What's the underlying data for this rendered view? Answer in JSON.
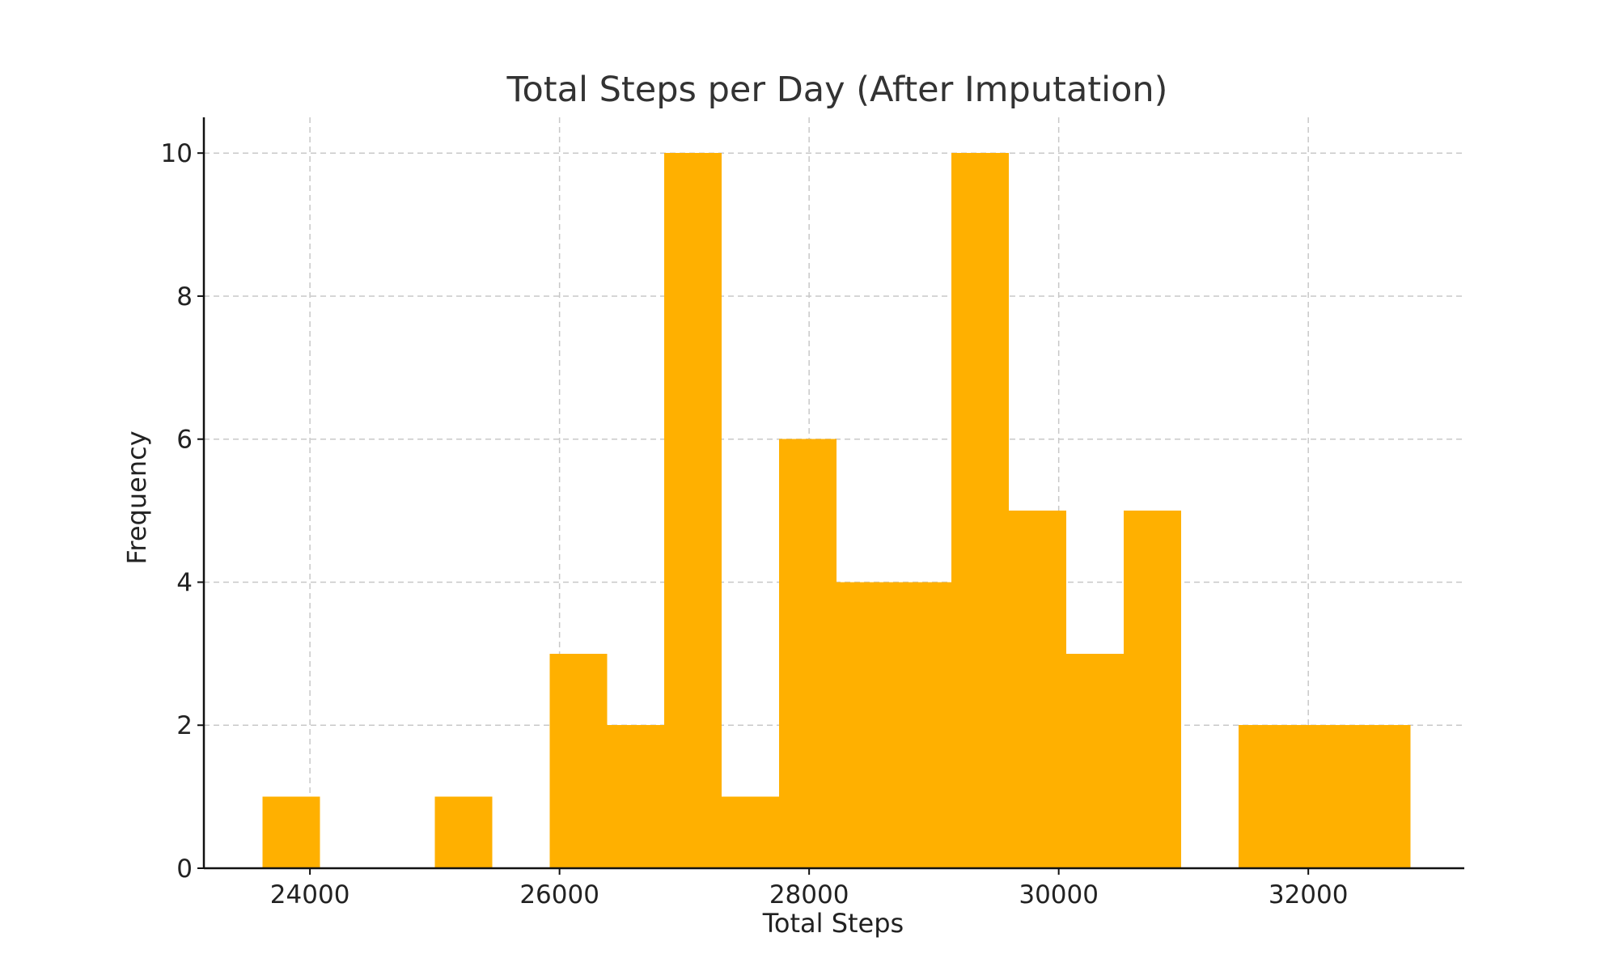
{
  "chart_data": {
    "type": "bar",
    "title": "Total Steps per Day (After Imputation)",
    "xlabel": "Total Steps",
    "ylabel": "Frequency",
    "grid": true,
    "bar_color": "#FFB000",
    "xlim": [
      23150,
      33250
    ],
    "ylim": [
      0,
      10.5
    ],
    "xticks": [
      "24000",
      "26000",
      "28000",
      "30000",
      "32000"
    ],
    "yticks": [
      "0",
      "2",
      "4",
      "6",
      "8",
      "10"
    ],
    "bins": [
      {
        "start": 23620,
        "end": 24080,
        "count": 1
      },
      {
        "start": 24080,
        "end": 24540,
        "count": 0
      },
      {
        "start": 24540,
        "end": 25000,
        "count": 0
      },
      {
        "start": 25000,
        "end": 25460,
        "count": 1
      },
      {
        "start": 25460,
        "end": 25920,
        "count": 0
      },
      {
        "start": 25920,
        "end": 26380,
        "count": 3
      },
      {
        "start": 26380,
        "end": 26840,
        "count": 2
      },
      {
        "start": 26840,
        "end": 27300,
        "count": 10
      },
      {
        "start": 27300,
        "end": 27760,
        "count": 1
      },
      {
        "start": 27760,
        "end": 28220,
        "count": 6
      },
      {
        "start": 28220,
        "end": 28680,
        "count": 4
      },
      {
        "start": 28680,
        "end": 29140,
        "count": 4
      },
      {
        "start": 29140,
        "end": 29600,
        "count": 10
      },
      {
        "start": 29600,
        "end": 30060,
        "count": 5
      },
      {
        "start": 30060,
        "end": 30520,
        "count": 3
      },
      {
        "start": 30520,
        "end": 30980,
        "count": 5
      },
      {
        "start": 30980,
        "end": 31440,
        "count": 0
      },
      {
        "start": 31440,
        "end": 31900,
        "count": 2
      },
      {
        "start": 31900,
        "end": 32360,
        "count": 2
      },
      {
        "start": 32360,
        "end": 32820,
        "count": 2
      }
    ]
  }
}
